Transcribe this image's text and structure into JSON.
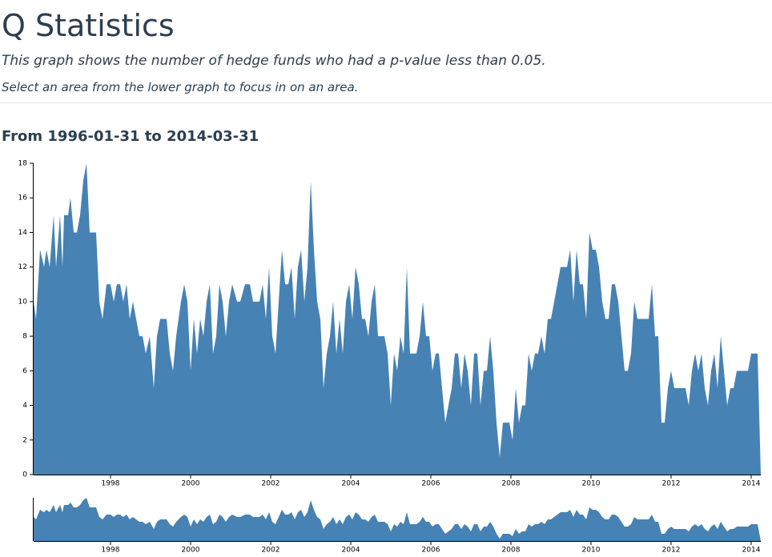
{
  "header": {
    "title": "Q Statistics",
    "subtitle": "This graph shows the number of hedge funds who had a p-value less than 0.05.",
    "instruction": "Select an area from the lower graph to focus in on an area."
  },
  "chart_data": {
    "type": "area",
    "title": "From 1996-01-31 to 2014-03-31",
    "color": "#4682b4",
    "x": [
      1996.08,
      1996.14,
      1996.24,
      1996.34,
      1996.4,
      1996.48,
      1996.58,
      1996.64,
      1996.74,
      1996.8,
      1996.84,
      1996.94,
      1997.0,
      1997.08,
      1997.16,
      1997.24,
      1997.32,
      1997.4,
      1997.48,
      1997.64,
      1997.72,
      1997.8,
      1997.9,
      1998.0,
      1998.08,
      1998.16,
      1998.24,
      1998.32,
      1998.4,
      1998.48,
      1998.56,
      1998.64,
      1998.72,
      1998.8,
      1998.88,
      1998.98,
      1999.08,
      1999.16,
      1999.24,
      1999.4,
      1999.48,
      1999.56,
      1999.64,
      1999.76,
      1999.84,
      1999.92,
      2000.0,
      2000.08,
      2000.16,
      2000.24,
      2000.32,
      2000.4,
      2000.48,
      2000.56,
      2000.64,
      2000.72,
      2000.8,
      2000.88,
      2000.96,
      2001.04,
      2001.16,
      2001.24,
      2001.36,
      2001.48,
      2001.56,
      2001.72,
      2001.8,
      2001.88,
      2001.96,
      2002.04,
      2002.12,
      2002.2,
      2002.28,
      2002.36,
      2002.44,
      2002.52,
      2002.6,
      2002.68,
      2002.76,
      2002.84,
      2002.92,
      2003.0,
      2003.08,
      2003.16,
      2003.24,
      2003.32,
      2003.4,
      2003.48,
      2003.56,
      2003.64,
      2003.72,
      2003.8,
      2003.88,
      2003.96,
      2004.04,
      2004.12,
      2004.2,
      2004.28,
      2004.36,
      2004.44,
      2004.52,
      2004.6,
      2004.68,
      2004.84,
      2004.92,
      2005.0,
      2005.08,
      2005.16,
      2005.24,
      2005.32,
      2005.4,
      2005.48,
      2005.64,
      2005.72,
      2005.8,
      2005.88,
      2005.96,
      2006.04,
      2006.12,
      2006.2,
      2006.28,
      2006.36,
      2006.44,
      2006.52,
      2006.6,
      2006.68,
      2006.76,
      2006.84,
      2006.92,
      2007.0,
      2007.08,
      2007.16,
      2007.24,
      2007.32,
      2007.4,
      2007.48,
      2007.56,
      2007.64,
      2007.72,
      2007.8,
      2007.96,
      2008.04,
      2008.12,
      2008.2,
      2008.28,
      2008.36,
      2008.44,
      2008.52,
      2008.6,
      2008.68,
      2008.76,
      2008.84,
      2008.92,
      2009.0,
      2009.08,
      2009.16,
      2009.24,
      2009.32,
      2009.4,
      2009.48,
      2009.56,
      2009.64,
      2009.72,
      2009.8,
      2009.88,
      2009.96,
      2010.04,
      2010.12,
      2010.2,
      2010.28,
      2010.36,
      2010.44,
      2010.52,
      2010.6,
      2010.68,
      2010.76,
      2010.84,
      2010.92,
      2011.0,
      2011.08,
      2011.16,
      2011.32,
      2011.44,
      2011.52,
      2011.6,
      2011.68,
      2011.76,
      2011.84,
      2011.92,
      2012.0,
      2012.08,
      2012.24,
      2012.36,
      2012.44,
      2012.52,
      2012.6,
      2012.68,
      2012.76,
      2012.84,
      2012.92,
      2013.0,
      2013.08,
      2013.16,
      2013.24,
      2013.32,
      2013.4,
      2013.48,
      2013.56,
      2013.64,
      2013.8,
      2013.92,
      2014.0,
      2014.16,
      2014.24
    ],
    "values": [
      10,
      9,
      13,
      12,
      13,
      12,
      15,
      12,
      15,
      12,
      15,
      15,
      16,
      14,
      14,
      15,
      17,
      18,
      14,
      14,
      10,
      9,
      11,
      11,
      10,
      11,
      11,
      10,
      11,
      9,
      10,
      9,
      8,
      8,
      7,
      8,
      5,
      8,
      9,
      9,
      7,
      6,
      8,
      10,
      11,
      10,
      6,
      9,
      7,
      9,
      8,
      10,
      11,
      7,
      8,
      11,
      10,
      8,
      10,
      11,
      10,
      10,
      11,
      11,
      10,
      10,
      11,
      9,
      12,
      8,
      7,
      10,
      13,
      11,
      11,
      12,
      9,
      12,
      13,
      10,
      12,
      17,
      13,
      10,
      9,
      5,
      7,
      8,
      10,
      7,
      9,
      7,
      10,
      11,
      9,
      12,
      11,
      9,
      9,
      8,
      10,
      11,
      8,
      8,
      7,
      4,
      7,
      6,
      8,
      7,
      12,
      7,
      7,
      8,
      10,
      8,
      8,
      6,
      7,
      7,
      5,
      3,
      4,
      5,
      7,
      7,
      5,
      7,
      6,
      4,
      7,
      7,
      4,
      6,
      6,
      8,
      6,
      3,
      1,
      3,
      3,
      2,
      5,
      3,
      4,
      4,
      7,
      6,
      7,
      7,
      8,
      7,
      9,
      9,
      10,
      11,
      12,
      12,
      12,
      13,
      10,
      13,
      11,
      11,
      9,
      14,
      13,
      13,
      12,
      10,
      9,
      9,
      11,
      11,
      10,
      8,
      6,
      6,
      7,
      10,
      9,
      9,
      9,
      11,
      8,
      8,
      3,
      3,
      5,
      6,
      5,
      5,
      5,
      4,
      6,
      7,
      6,
      7,
      5,
      4,
      6,
      7,
      5,
      8,
      6,
      4,
      5,
      5,
      6,
      6,
      6,
      7,
      7,
      0
    ],
    "xlim": [
      1996.08,
      2014.24
    ],
    "xticks": [
      1998,
      2000,
      2002,
      2004,
      2006,
      2008,
      2010,
      2012,
      2014
    ],
    "ylim": [
      0,
      18
    ],
    "yticks": [
      0,
      2,
      4,
      6,
      8,
      10,
      12,
      14,
      16,
      18
    ]
  }
}
